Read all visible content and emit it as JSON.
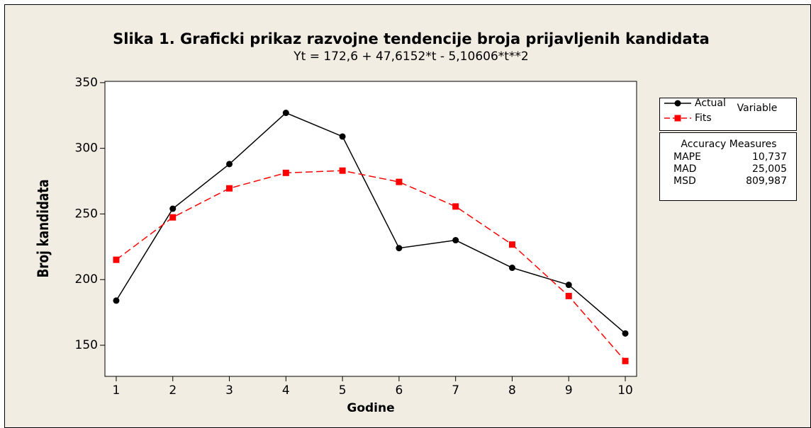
{
  "chart_data": {
    "type": "line",
    "title": "Slika 1. Graficki prikaz razvojne tendencije broja prijavljenih kandidata",
    "subtitle": "Yt = 172,6 + 47,6152*t - 5,10606*t**2",
    "x_label": "Godine",
    "y_label": "Broj kandidata",
    "x": [
      1,
      2,
      3,
      4,
      5,
      6,
      7,
      8,
      9,
      10
    ],
    "series": [
      {
        "name": "Actual",
        "color": "#000000",
        "marker": "circle",
        "dashed": false,
        "values": [
          184,
          254,
          288,
          327,
          309,
          224,
          230,
          209,
          196,
          159
        ]
      },
      {
        "name": "Fits",
        "color": "#ff0000",
        "marker": "square",
        "dashed": true,
        "values": [
          215.1,
          247.4,
          269.5,
          281.3,
          283.0,
          274.4,
          255.7,
          226.7,
          187.5,
          138.0
        ]
      }
    ],
    "legend_title": "Variable",
    "xlim": [
      0.8,
      10.2
    ],
    "xticks": [
      1,
      2,
      3,
      4,
      5,
      6,
      7,
      8,
      9,
      10
    ],
    "ylim": [
      126.3,
      351
    ],
    "yticks": [
      150,
      200,
      250,
      300,
      350
    ],
    "grid": false,
    "accuracy": {
      "title": "Accuracy Measures",
      "rows": [
        [
          "MAPE",
          "10,737"
        ],
        [
          "MAD",
          "25,005"
        ],
        [
          "MSD",
          "809,987"
        ]
      ]
    }
  }
}
